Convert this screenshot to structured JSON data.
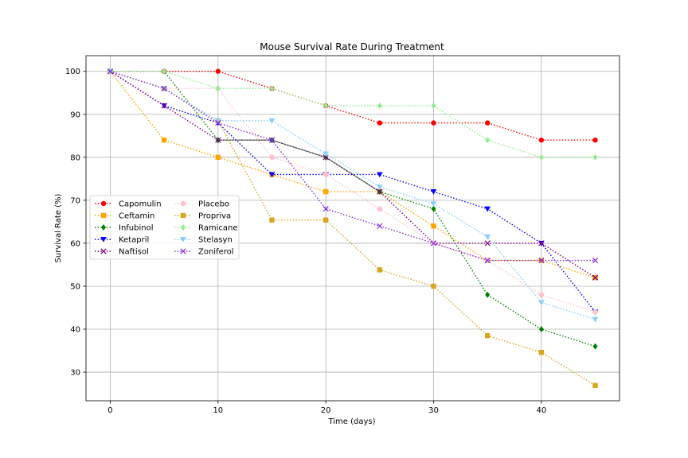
{
  "chart_data": {
    "type": "line",
    "title": "Mouse Survival Rate During Treatment",
    "xlabel": "Time (days)",
    "ylabel": "Survival Rate (%)",
    "xlim": [
      -2.25,
      47.25
    ],
    "ylim": [
      23.35,
      103.65
    ],
    "xticks": [
      0,
      10,
      20,
      30,
      40
    ],
    "yticks": [
      30,
      40,
      50,
      60,
      70,
      80,
      90,
      100
    ],
    "grid": true,
    "legend_location": "center-left",
    "x": [
      0,
      5,
      10,
      15,
      20,
      25,
      30,
      35,
      40,
      45
    ],
    "series": [
      {
        "name": "Capomulin",
        "color": "#ff0000",
        "marker": "circle",
        "values": [
          100,
          100,
          100,
          96,
          92,
          88,
          88,
          88,
          84,
          84
        ]
      },
      {
        "name": "Ceftamin",
        "color": "#ffa500",
        "marker": "square",
        "values": [
          100,
          84,
          80,
          76,
          72,
          72,
          64,
          56,
          56,
          52
        ]
      },
      {
        "name": "Infubinol",
        "color": "#008000",
        "marker": "diamond",
        "values": [
          100,
          100,
          84,
          84,
          80,
          72,
          68,
          48,
          40,
          36
        ]
      },
      {
        "name": "Ketapril",
        "color": "#0000ff",
        "marker": "triangle-down",
        "values": [
          100,
          92,
          88,
          76,
          76,
          76,
          72,
          68,
          60,
          44
        ]
      },
      {
        "name": "Naftisol",
        "color": "#800080",
        "marker": "x",
        "values": [
          100,
          92,
          84,
          84,
          80,
          72,
          60,
          60,
          60,
          52
        ]
      },
      {
        "name": "Placebo",
        "color": "#ffc0cb",
        "marker": "circle",
        "values": [
          100,
          96,
          96,
          80,
          76,
          68,
          60,
          56,
          48,
          44
        ]
      },
      {
        "name": "Propriva",
        "color": "#daa520",
        "marker": "square",
        "values": [
          100,
          96,
          88.5,
          65.4,
          65.4,
          53.8,
          50,
          38.5,
          34.6,
          26.9
        ]
      },
      {
        "name": "Ramicane",
        "color": "#90ee90",
        "marker": "diamond",
        "values": [
          100,
          100,
          96,
          96,
          92,
          92,
          92,
          84,
          80,
          80
        ]
      },
      {
        "name": "Stelasyn",
        "color": "#87cefa",
        "marker": "triangle-down",
        "values": [
          100,
          96,
          88.5,
          88.5,
          80.8,
          73.1,
          69.2,
          61.5,
          46.2,
          42.3
        ]
      },
      {
        "name": "Zoniferol",
        "color": "#8a2be2",
        "marker": "x",
        "values": [
          100,
          96,
          88,
          84,
          68,
          64,
          60,
          56,
          56,
          56
        ]
      }
    ]
  }
}
